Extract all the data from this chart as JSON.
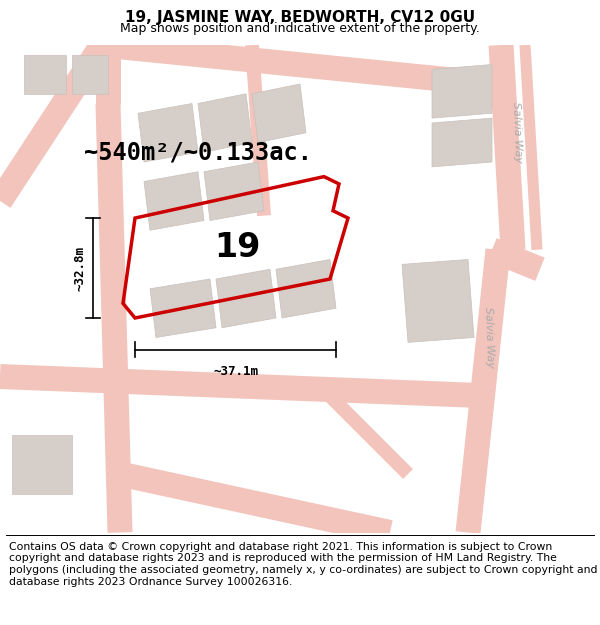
{
  "title": "19, JASMINE WAY, BEDWORTH, CV12 0GU",
  "subtitle": "Map shows position and indicative extent of the property.",
  "footer": "Contains OS data © Crown copyright and database right 2021. This information is subject to Crown copyright and database rights 2023 and is reproduced with the permission of HM Land Registry. The polygons (including the associated geometry, namely x, y co-ordinates) are subject to Crown copyright and database rights 2023 Ordnance Survey 100026316.",
  "area_label": "~540m²/~0.133ac.",
  "property_number": "19",
  "dim_width": "~37.1m",
  "dim_height": "~32.8m",
  "map_bg": "#f7f3f0",
  "road_color": "#f2c4bc",
  "road_fill": "#f7f0ee",
  "building_color": "#d6cec8",
  "building_outline": "#c8c0bb",
  "highlight_color": "#cc0000",
  "street_label_color": "#aaaaaa",
  "title_fontsize": 11,
  "subtitle_fontsize": 9,
  "footer_fontsize": 7.8,
  "area_fontsize": 17,
  "number_fontsize": 24,
  "dim_fontsize": 9
}
